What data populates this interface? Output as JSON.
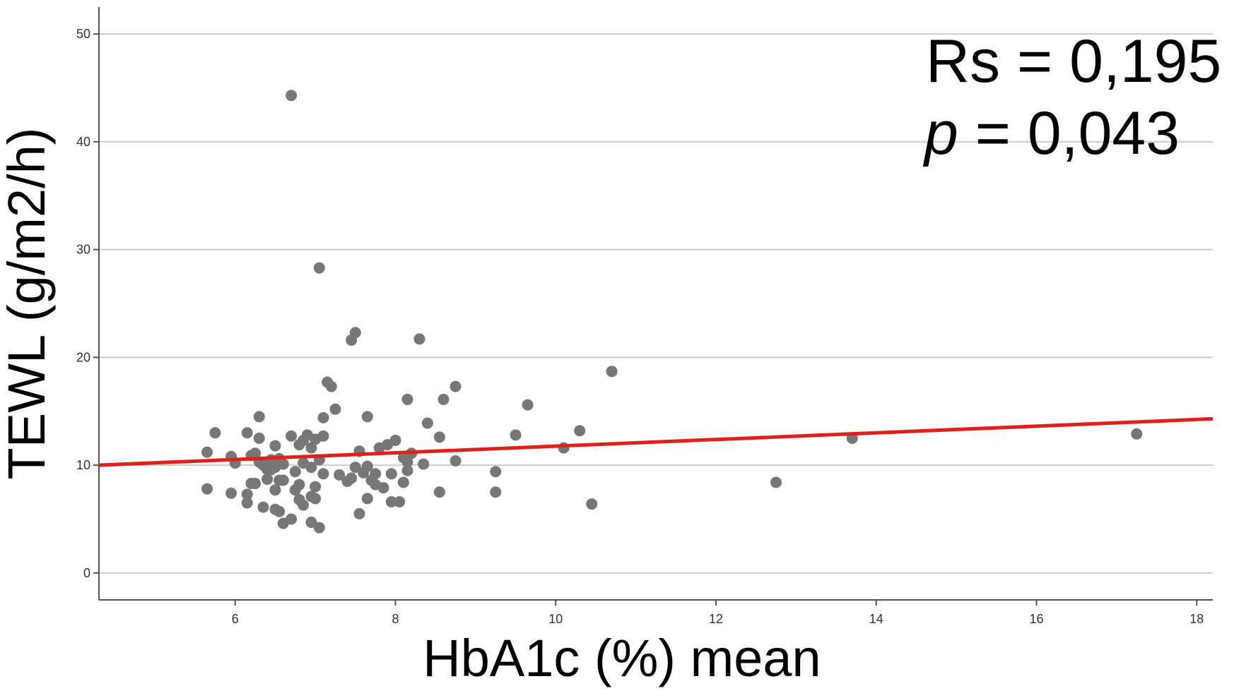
{
  "chart_data": {
    "type": "scatter",
    "title": "",
    "xlabel": "HbA1c (%) mean",
    "ylabel": "TEWL (g/m2/h)",
    "xlim": [
      4.3,
      18.2
    ],
    "ylim": [
      -2.5,
      52.5
    ],
    "x_ticks": [
      "6",
      "8",
      "10",
      "12",
      "14",
      "16",
      "18"
    ],
    "y_ticks": [
      "0",
      "10",
      "20",
      "30",
      "40",
      "50"
    ],
    "grid": "horizontal",
    "annotations": {
      "rs_line": "Rs = 0,195",
      "p_symbol": "p",
      "p_rest": " = 0,043"
    },
    "regression_line": {
      "x": [
        4.3,
        18.2
      ],
      "y": [
        10.0,
        14.3
      ]
    },
    "colors": {
      "points": "#777777",
      "line": "#e0201b",
      "grid": "#cccccc",
      "axis": "#555555"
    },
    "x": [
      6.7,
      7.05,
      7.5,
      7.45,
      8.3,
      10.7,
      7.15,
      7.2,
      8.75,
      8.6,
      8.15,
      9.65,
      7.25,
      7.65,
      8.4,
      6.3,
      7.1,
      10.3,
      5.75,
      6.15,
      6.7,
      6.9,
      6.85,
      7.0,
      7.1,
      9.5,
      8.55,
      10.1,
      13.7,
      17.25,
      5.65,
      5.95,
      6.0,
      6.25,
      6.5,
      6.8,
      6.95,
      7.55,
      7.8,
      7.9,
      8.0,
      8.1,
      6.35,
      6.45,
      6.55,
      6.2,
      6.3,
      6.4,
      6.5,
      6.6,
      6.75,
      6.85,
      6.95,
      7.05,
      8.75,
      8.35,
      9.25,
      5.65,
      5.95,
      6.15,
      6.5,
      6.6,
      6.8,
      7.0,
      7.1,
      7.3,
      7.45,
      7.6,
      7.7,
      7.75,
      8.15,
      8.55,
      9.25,
      12.75,
      6.15,
      6.35,
      6.55,
      6.8,
      6.95,
      7.5,
      7.65,
      7.95,
      8.05,
      10.45,
      6.5,
      6.7,
      6.85,
      7.0,
      6.6,
      6.95,
      7.05,
      7.75,
      7.85,
      8.1,
      6.25,
      6.4,
      7.55,
      7.4,
      6.4,
      6.55,
      6.75,
      8.15,
      7.95,
      7.55,
      6.3,
      6.2,
      7.65,
      8.2,
      6.45
    ],
    "y": [
      44.3,
      28.3,
      22.3,
      21.6,
      21.7,
      18.7,
      17.7,
      17.3,
      17.3,
      16.1,
      16.1,
      15.6,
      15.2,
      14.5,
      13.9,
      14.5,
      14.4,
      13.2,
      13.0,
      13.0,
      12.7,
      12.8,
      12.3,
      12.4,
      12.7,
      12.8,
      12.6,
      11.6,
      12.5,
      12.9,
      11.2,
      10.8,
      10.2,
      11.1,
      11.8,
      11.9,
      11.6,
      11.3,
      11.6,
      11.9,
      12.3,
      10.7,
      10.0,
      10.5,
      10.6,
      10.9,
      10.3,
      9.7,
      9.8,
      10.1,
      9.4,
      10.2,
      9.8,
      10.5,
      10.4,
      10.1,
      9.4,
      7.8,
      7.4,
      7.3,
      7.7,
      8.6,
      8.2,
      8.0,
      9.2,
      9.1,
      8.8,
      9.3,
      8.6,
      9.2,
      9.5,
      7.5,
      7.5,
      8.4,
      6.5,
      6.1,
      5.7,
      6.8,
      7.1,
      9.8,
      9.9,
      9.2,
      6.6,
      6.4,
      5.9,
      5.0,
      6.3,
      6.9,
      4.6,
      4.7,
      4.2,
      8.2,
      7.9,
      8.4,
      8.3,
      8.7,
      5.5,
      8.5,
      9.6,
      8.6,
      7.7,
      10.3,
      6.6,
      11.3,
      12.5,
      8.3,
      6.9,
      11.1,
      9.6
    ]
  }
}
